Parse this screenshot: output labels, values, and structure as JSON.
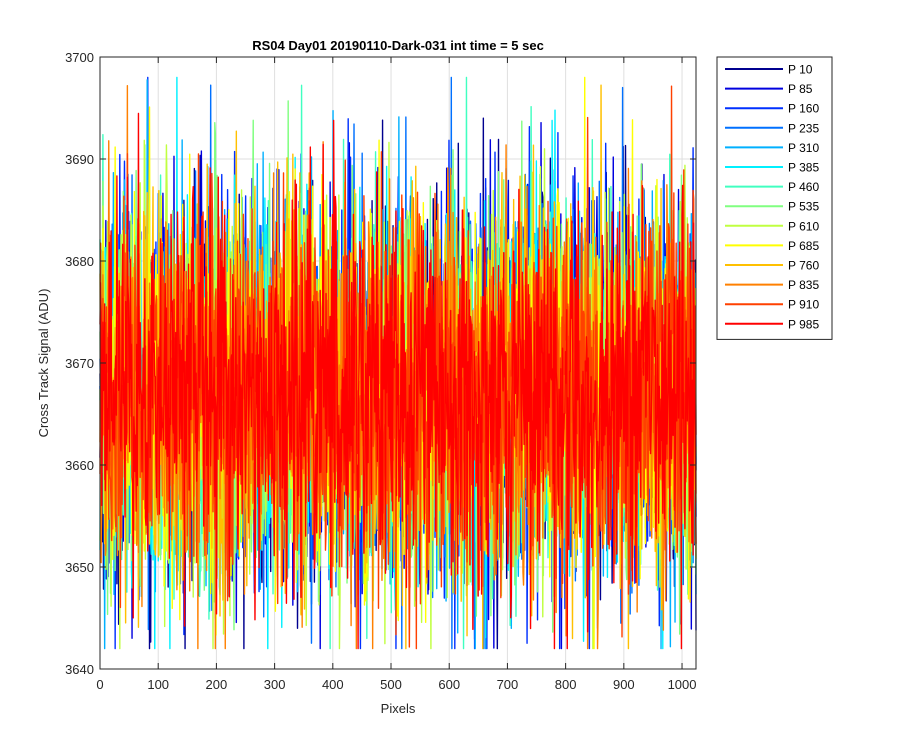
{
  "chart_data": {
    "type": "line",
    "title": "RS04 Day01 20190110-Dark-031 int time = 5 sec",
    "xlabel": "Pixels",
    "ylabel": "Cross Track Signal (ADU)",
    "xlim": [
      0,
      1024
    ],
    "ylim": [
      3640,
      3700
    ],
    "xticks": [
      0,
      100,
      200,
      300,
      400,
      500,
      600,
      700,
      800,
      900,
      1000
    ],
    "yticks": [
      3640,
      3650,
      3660,
      3670,
      3680,
      3690,
      3700
    ],
    "grid": true,
    "legend_position": "outside-right",
    "noise_summary": {
      "n_points_per_series": 1024,
      "mean": 3667,
      "typical_min": 3645,
      "typical_max": 3690
    },
    "series": [
      {
        "name": "P 10",
        "color": "#00008f"
      },
      {
        "name": "P 85",
        "color": "#0000df"
      },
      {
        "name": "P 160",
        "color": "#0030ff"
      },
      {
        "name": "P 235",
        "color": "#0070ff"
      },
      {
        "name": "P 310",
        "color": "#00b0ff"
      },
      {
        "name": "P 385",
        "color": "#00f0ff"
      },
      {
        "name": "P 460",
        "color": "#40ffc0"
      },
      {
        "name": "P 535",
        "color": "#80ff80"
      },
      {
        "name": "P 610",
        "color": "#c0ff40"
      },
      {
        "name": "P 685",
        "color": "#ffff00"
      },
      {
        "name": "P 760",
        "color": "#ffc000"
      },
      {
        "name": "P 835",
        "color": "#ff8000"
      },
      {
        "name": "P 910",
        "color": "#ff4000"
      },
      {
        "name": "P 985",
        "color": "#ff0000"
      }
    ]
  }
}
